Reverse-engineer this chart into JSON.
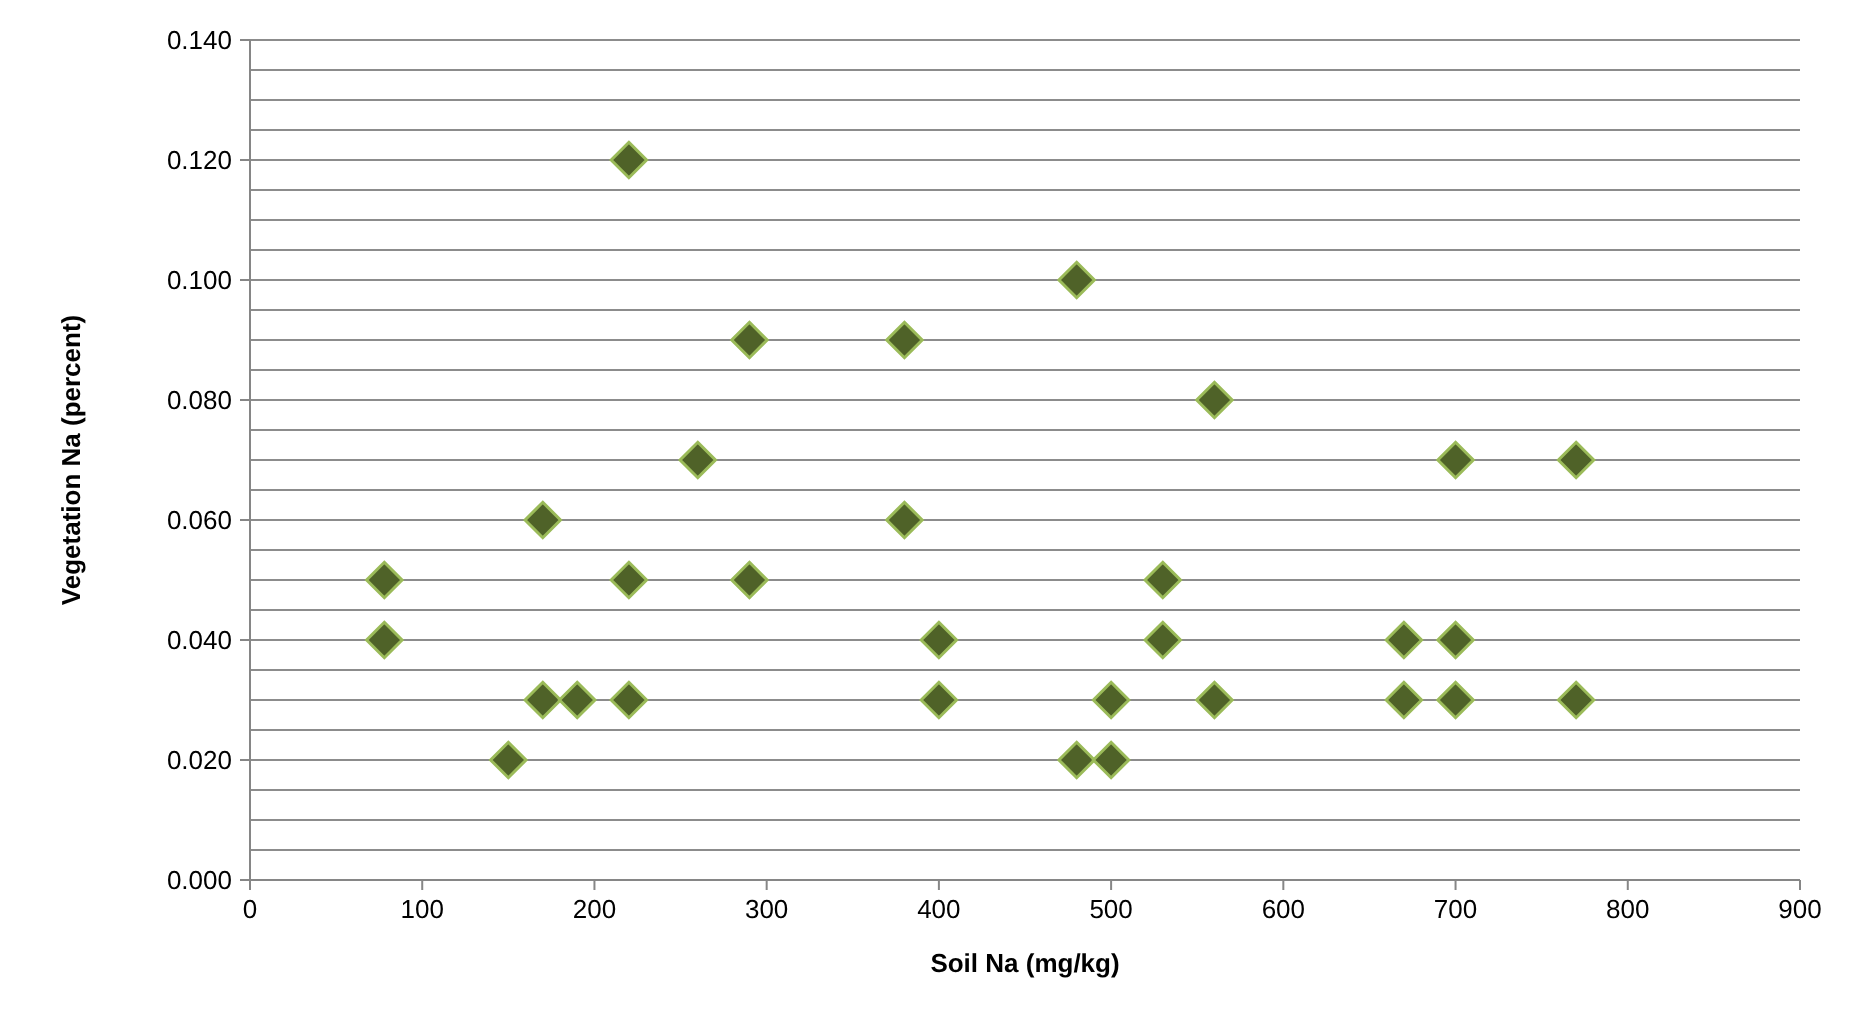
{
  "chart_data": {
    "type": "scatter",
    "xlabel": "Soil Na (mg/kg)",
    "ylabel": "Vegetation Na (percent)",
    "x": [
      78,
      78,
      150,
      170,
      170,
      190,
      220,
      220,
      220,
      260,
      290,
      290,
      380,
      380,
      400,
      400,
      480,
      480,
      500,
      500,
      530,
      530,
      560,
      560,
      670,
      670,
      700,
      700,
      700,
      770,
      770
    ],
    "series": [
      {
        "color": "#4f6228",
        "values": [
          0.05,
          0.04,
          0.02,
          0.06,
          0.03,
          0.03,
          0.12,
          0.05,
          0.03,
          0.07,
          0.09,
          0.05,
          0.09,
          0.06,
          0.04,
          0.03,
          0.1,
          0.02,
          0.03,
          0.02,
          0.05,
          0.04,
          0.08,
          0.03,
          0.04,
          0.03,
          0.07,
          0.04,
          0.03,
          0.07,
          0.03
        ]
      }
    ],
    "xlim": [
      0,
      900
    ],
    "xticks": [
      0,
      100,
      200,
      300,
      400,
      500,
      600,
      700,
      800,
      900
    ],
    "ylim": [
      0,
      0.14
    ],
    "yticks": [
      {
        "value": 0,
        "label": "0.000"
      },
      {
        "value": 0.005,
        "label": null
      },
      {
        "value": 0.01,
        "label": null
      },
      {
        "value": 0.015,
        "label": null
      },
      {
        "value": 0.02,
        "label": "0.020"
      },
      {
        "value": 0.025,
        "label": null
      },
      {
        "value": 0.03,
        "label": null
      },
      {
        "value": 0.035,
        "label": null
      },
      {
        "value": 0.04,
        "label": "0.040"
      },
      {
        "value": 0.045,
        "label": null
      },
      {
        "value": 0.05,
        "label": null
      },
      {
        "value": 0.055,
        "label": null
      },
      {
        "value": 0.06,
        "label": "0.060"
      },
      {
        "value": 0.065,
        "label": null
      },
      {
        "value": 0.07,
        "label": null
      },
      {
        "value": 0.075,
        "label": null
      },
      {
        "value": 0.08,
        "label": "0.080"
      },
      {
        "value": 0.085,
        "label": null
      },
      {
        "value": 0.09,
        "label": null
      },
      {
        "value": 0.095,
        "label": null
      },
      {
        "value": 0.1,
        "label": "0.100"
      },
      {
        "value": 0.105,
        "label": null
      },
      {
        "value": 0.11,
        "label": null
      },
      {
        "value": 0.115,
        "label": null
      },
      {
        "value": 0.12,
        "label": "0.120"
      },
      {
        "value": 0.125,
        "label": null
      },
      {
        "value": 0.13,
        "label": null
      },
      {
        "value": 0.135,
        "label": null
      },
      {
        "value": 0.14,
        "label": "0.140"
      }
    ],
    "grid": "y",
    "marker": "diamond"
  }
}
